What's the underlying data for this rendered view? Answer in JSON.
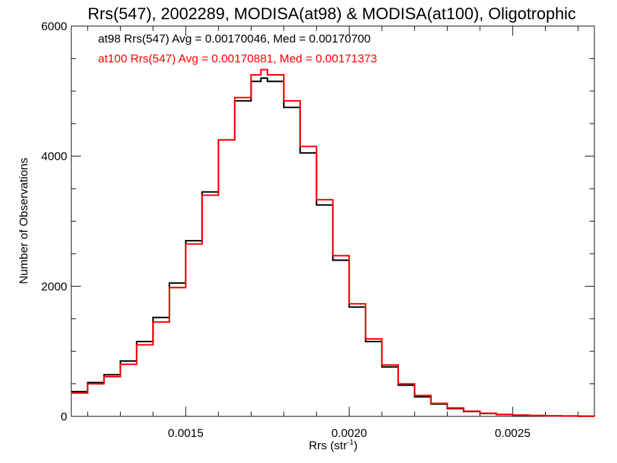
{
  "chart_data": {
    "type": "line",
    "title": "Rrs(547), 2002289, MODISA(at98) & MODISA(at100), Oligotrophic",
    "xlabel_main": "Rrs (str",
    "xlabel_sup": "-1",
    "xlabel_close": ")",
    "ylabel": "Number of Observations",
    "xlim": [
      0.00115,
      0.00275
    ],
    "ylim": [
      0,
      6000
    ],
    "x_ticks": [
      0.0015,
      0.002,
      0.0025
    ],
    "x_tick_labels": [
      "0.0015",
      "0.0020",
      "0.0025"
    ],
    "y_ticks": [
      0,
      2000,
      4000,
      6000
    ],
    "y_tick_labels": [
      "0",
      "2000",
      "4000",
      "6000"
    ],
    "grid": false,
    "annotations": [
      {
        "text": "at98 Rrs(547) Avg = 0.00170046, Med = 0.00170700",
        "color": "#000000"
      },
      {
        "text": "at100 Rrs(547) Avg = 0.00170881, Med = 0.00171373",
        "color": "#ff0000"
      }
    ],
    "series": [
      {
        "color": "#000000",
        "x": [
          0.00115,
          0.0012,
          0.00125,
          0.0013,
          0.00135,
          0.0014,
          0.00145,
          0.0015,
          0.00155,
          0.0016,
          0.00165,
          0.0017,
          0.00173,
          0.00175,
          0.0018,
          0.00185,
          0.0019,
          0.00195,
          0.002,
          0.00205,
          0.0021,
          0.00215,
          0.0022,
          0.00225,
          0.0023,
          0.00235,
          0.0024,
          0.00245,
          0.0025,
          0.00255,
          0.0026,
          0.00265,
          0.0027,
          0.00275
        ],
        "y": [
          380,
          520,
          640,
          850,
          1150,
          1520,
          2050,
          2700,
          3450,
          4250,
          4850,
          5150,
          5200,
          5150,
          4750,
          4050,
          3250,
          2400,
          1680,
          1150,
          760,
          480,
          300,
          190,
          120,
          75,
          45,
          28,
          18,
          12,
          8,
          5,
          3,
          2
        ]
      },
      {
        "color": "#ff0000",
        "x": [
          0.00115,
          0.0012,
          0.00125,
          0.0013,
          0.00135,
          0.0014,
          0.00145,
          0.0015,
          0.00155,
          0.0016,
          0.00165,
          0.0017,
          0.00173,
          0.00175,
          0.0018,
          0.00185,
          0.0019,
          0.00195,
          0.002,
          0.00205,
          0.0021,
          0.00215,
          0.0022,
          0.00225,
          0.0023,
          0.00235,
          0.0024,
          0.00245,
          0.0025,
          0.00255,
          0.0026,
          0.00265,
          0.0027,
          0.00275
        ],
        "y": [
          360,
          500,
          610,
          800,
          1100,
          1450,
          1980,
          2650,
          3400,
          4250,
          4900,
          5250,
          5330,
          5250,
          4850,
          4150,
          3330,
          2470,
          1730,
          1190,
          790,
          500,
          320,
          200,
          130,
          80,
          48,
          30,
          20,
          13,
          9,
          6,
          4,
          2
        ]
      }
    ]
  }
}
